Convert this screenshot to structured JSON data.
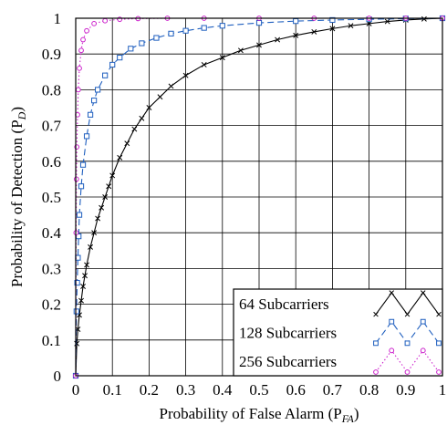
{
  "chart_data": {
    "type": "line",
    "title": "",
    "xlabel": "Probability of False Alarm (P",
    "xlabel_sub": "FA",
    "ylabel": "Probability of Detection (P",
    "ylabel_sub": "D",
    "xlim": [
      0,
      1
    ],
    "ylim": [
      0,
      1
    ],
    "grid": true,
    "legend_position": "bottom-right",
    "x_ticks": [
      "0",
      "0.1",
      "0.2",
      "0.3",
      "0.4",
      "0.5",
      "0.6",
      "0.7",
      "0.8",
      "0.9",
      "1"
    ],
    "y_ticks": [
      "0",
      "0.1",
      "0.2",
      "0.3",
      "0.4",
      "0.5",
      "0.6",
      "0.7",
      "0.8",
      "0.9",
      "1"
    ],
    "series": [
      {
        "name": "64 Subcarriers",
        "color": "#000000",
        "marker": "x",
        "dash": "solid",
        "x": [
          0,
          0.003,
          0.006,
          0.01,
          0.015,
          0.02,
          0.025,
          0.03,
          0.04,
          0.05,
          0.06,
          0.07,
          0.08,
          0.09,
          0.1,
          0.12,
          0.14,
          0.16,
          0.18,
          0.2,
          0.23,
          0.26,
          0.3,
          0.35,
          0.4,
          0.45,
          0.5,
          0.55,
          0.6,
          0.65,
          0.7,
          0.75,
          0.8,
          0.85,
          0.9,
          0.95,
          1.0
        ],
        "y": [
          0,
          0.09,
          0.13,
          0.17,
          0.21,
          0.25,
          0.28,
          0.31,
          0.36,
          0.4,
          0.44,
          0.47,
          0.5,
          0.53,
          0.56,
          0.61,
          0.65,
          0.69,
          0.72,
          0.75,
          0.78,
          0.81,
          0.84,
          0.87,
          0.89,
          0.91,
          0.925,
          0.94,
          0.952,
          0.962,
          0.971,
          0.979,
          0.985,
          0.991,
          0.995,
          0.998,
          1.0
        ]
      },
      {
        "name": "128 Subcarriers",
        "color": "#1f5fbf",
        "marker": "square",
        "dash": "dashed",
        "x": [
          0,
          0.002,
          0.004,
          0.006,
          0.008,
          0.01,
          0.015,
          0.02,
          0.03,
          0.04,
          0.05,
          0.06,
          0.08,
          0.1,
          0.12,
          0.15,
          0.18,
          0.22,
          0.26,
          0.3,
          0.35,
          0.4,
          0.5,
          0.6,
          0.7,
          0.8,
          0.9,
          1.0
        ],
        "y": [
          0,
          0.18,
          0.26,
          0.33,
          0.39,
          0.45,
          0.53,
          0.59,
          0.67,
          0.73,
          0.77,
          0.8,
          0.84,
          0.87,
          0.89,
          0.915,
          0.93,
          0.945,
          0.957,
          0.965,
          0.973,
          0.979,
          0.987,
          0.992,
          0.995,
          0.997,
          0.999,
          1.0
        ]
      },
      {
        "name": "256 Subcarriers",
        "color": "#cc22cc",
        "marker": "circle",
        "dash": "dotted",
        "x": [
          0,
          0.001,
          0.002,
          0.003,
          0.005,
          0.007,
          0.01,
          0.015,
          0.02,
          0.03,
          0.05,
          0.08,
          0.12,
          0.17,
          0.25,
          0.35,
          0.5,
          0.65,
          0.8,
          0.9,
          1.0
        ],
        "y": [
          0,
          0.4,
          0.55,
          0.64,
          0.73,
          0.8,
          0.86,
          0.91,
          0.94,
          0.965,
          0.985,
          0.993,
          0.997,
          0.999,
          1.0,
          1.0,
          1.0,
          1.0,
          1.0,
          1.0,
          1.0
        ]
      }
    ]
  }
}
